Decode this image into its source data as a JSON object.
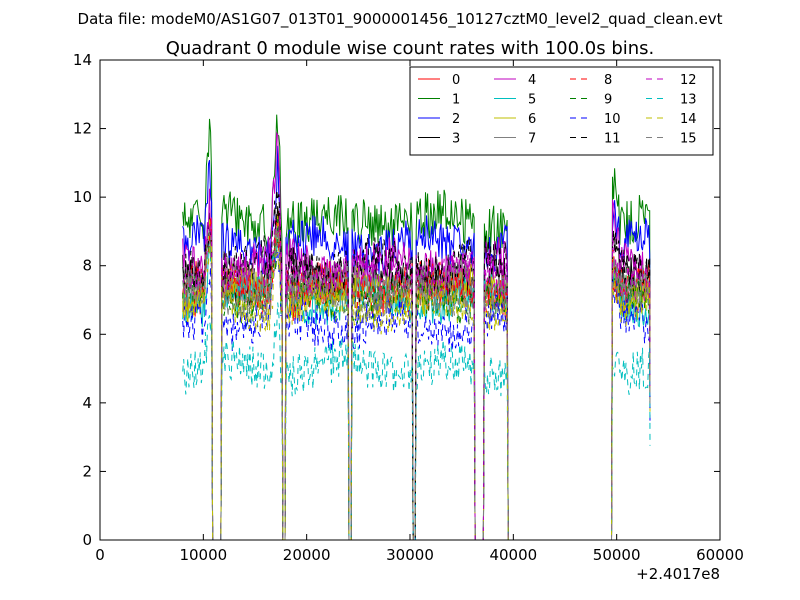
{
  "header": {
    "data_file": "Data file: modeM0/AS1G07_013T01_9000001456_10127cztM0_level2_quad_clean.evt"
  },
  "chart_data": {
    "type": "line",
    "title": "Quadrant 0 module wise count rates with 100.0s bins.",
    "xlabel": "",
    "ylabel": "",
    "x_offset_label": "+2.4017e8",
    "xlim": [
      0,
      60000
    ],
    "ylim": [
      0,
      14
    ],
    "x_ticks": [
      0,
      10000,
      20000,
      30000,
      40000,
      50000,
      60000
    ],
    "x_tick_labels": [
      "0",
      "10000",
      "20000",
      "30000",
      "40000",
      "50000",
      "60000"
    ],
    "y_ticks": [
      0,
      2,
      4,
      6,
      8,
      10,
      12,
      14
    ],
    "y_tick_labels": [
      "0",
      "2",
      "4",
      "6",
      "8",
      "10",
      "12",
      "14"
    ],
    "grid": false,
    "legend_position": "top-right",
    "legend_columns": 4,
    "segments": [
      [
        8000,
        10800
      ],
      [
        11800,
        17600
      ],
      [
        18000,
        24000
      ],
      [
        24400,
        30200
      ],
      [
        30600,
        36200
      ],
      [
        37200,
        39400
      ],
      [
        49600,
        53200
      ]
    ],
    "dropout_intervals": [
      [
        10900,
        11700
      ],
      [
        17700,
        17900
      ],
      [
        24100,
        24300
      ],
      [
        30300,
        30500
      ],
      [
        36300,
        37100
      ],
      [
        39500,
        49500
      ]
    ],
    "series": [
      {
        "name": "0",
        "color": "#ff0000",
        "dash": "solid",
        "level": 7.2,
        "noise": 0.35,
        "peak1": 9.0,
        "peak2": 9.5
      },
      {
        "name": "1",
        "color": "#008000",
        "dash": "solid",
        "level": 9.3,
        "noise": 0.45,
        "peak1": 11.9,
        "peak2": 12.4
      },
      {
        "name": "2",
        "color": "#0000ff",
        "dash": "solid",
        "level": 8.6,
        "noise": 0.4,
        "peak1": 10.6,
        "peak2": 11.0
      },
      {
        "name": "3",
        "color": "#000000",
        "dash": "solid",
        "level": 7.6,
        "noise": 0.35,
        "peak1": 9.2,
        "peak2": 9.4
      },
      {
        "name": "4",
        "color": "#bf00bf",
        "dash": "solid",
        "level": 8.0,
        "noise": 0.4,
        "peak1": 10.0,
        "peak2": 11.7
      },
      {
        "name": "5",
        "color": "#00bfbf",
        "dash": "solid",
        "level": 7.0,
        "noise": 0.35,
        "peak1": 8.6,
        "peak2": 9.0
      },
      {
        "name": "6",
        "color": "#bfbf00",
        "dash": "solid",
        "level": 7.3,
        "noise": 0.35,
        "peak1": 8.9,
        "peak2": 9.2
      },
      {
        "name": "7",
        "color": "#808080",
        "dash": "solid",
        "level": 7.5,
        "noise": 0.35,
        "peak1": 9.0,
        "peak2": 9.3
      },
      {
        "name": "8",
        "color": "#ff0000",
        "dash": "dashed",
        "level": 7.4,
        "noise": 0.35,
        "peak1": 8.9,
        "peak2": 9.2
      },
      {
        "name": "9",
        "color": "#008000",
        "dash": "dashed",
        "level": 7.0,
        "noise": 0.35,
        "peak1": 8.5,
        "peak2": 8.8
      },
      {
        "name": "10",
        "color": "#0000ff",
        "dash": "dashed",
        "level": 6.3,
        "noise": 0.4,
        "peak1": 7.9,
        "peak2": 8.2
      },
      {
        "name": "11",
        "color": "#000000",
        "dash": "dashed",
        "level": 8.0,
        "noise": 0.4,
        "peak1": 9.6,
        "peak2": 9.9
      },
      {
        "name": "12",
        "color": "#bf00bf",
        "dash": "dashed",
        "level": 7.7,
        "noise": 0.35,
        "peak1": 9.2,
        "peak2": 9.6
      },
      {
        "name": "13",
        "color": "#00bfbf",
        "dash": "dashed",
        "level": 5.0,
        "noise": 0.4,
        "peak1": 6.5,
        "peak2": 6.8
      },
      {
        "name": "14",
        "color": "#bfbf00",
        "dash": "dashed",
        "level": 6.8,
        "noise": 0.35,
        "peak1": 8.3,
        "peak2": 8.6
      },
      {
        "name": "15",
        "color": "#808080",
        "dash": "dashed",
        "level": 7.1,
        "noise": 0.35,
        "peak1": 8.6,
        "peak2": 8.9
      }
    ]
  }
}
